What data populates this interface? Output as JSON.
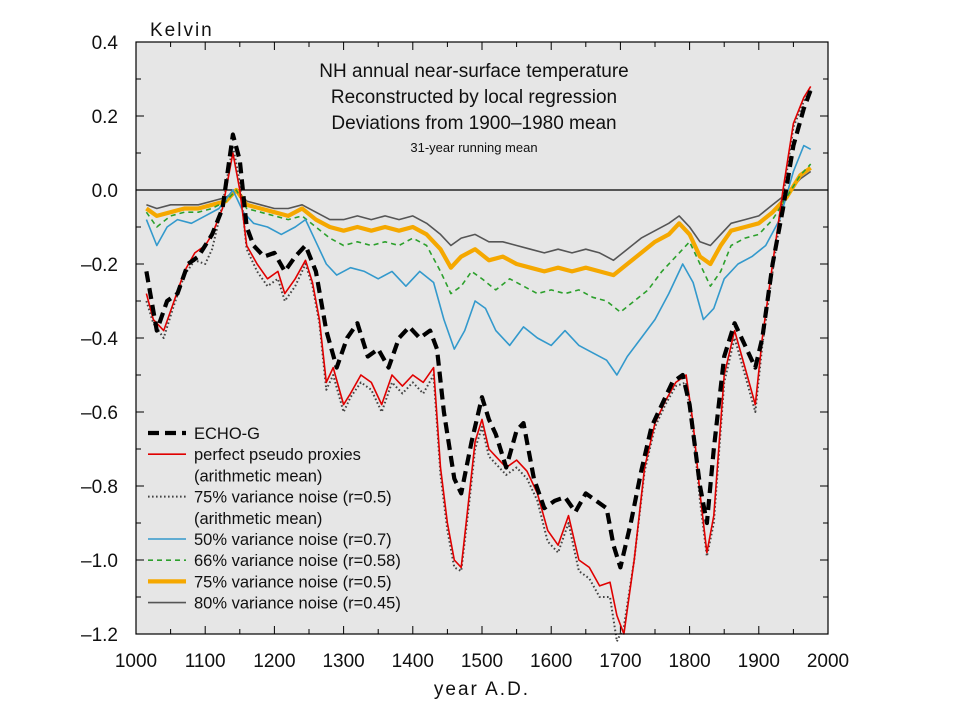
{
  "chart_data": {
    "type": "line",
    "title_lines": [
      "NH annual near-surface temperature",
      "Reconstructed by local regression",
      "Deviations from 1900–1980 mean"
    ],
    "subtitle": "31-year running mean",
    "xlabel": "year A.D.",
    "ylabel": "Kelvin",
    "xlim": [
      1000,
      2000
    ],
    "ylim": [
      -1.2,
      0.4
    ],
    "xticks": [
      "1000",
      "1100",
      "1200",
      "1300",
      "1400",
      "1500",
      "1600",
      "1700",
      "1800",
      "1900",
      "2000"
    ],
    "yticks": [
      "0.4",
      "0.2",
      "0.0",
      "–0.2",
      "–0.4",
      "–0.6",
      "–0.8",
      "–1.0",
      "–1.2"
    ],
    "ytick_values": [
      0.4,
      0.2,
      0.0,
      -0.2,
      -0.4,
      -0.6,
      -0.8,
      -1.0,
      -1.2
    ],
    "zero_line": true,
    "background": "#e6e6e6",
    "legend_position": "lower-left",
    "legend": [
      {
        "text": "ECHO-G",
        "series": 0
      },
      {
        "text": "perfect pseudo proxies",
        "series": 1
      },
      {
        "text": "(arithmetic mean)",
        "series": null
      },
      {
        "text": "75% variance noise (r=0.5)",
        "series": 2
      },
      {
        "text": "(arithmetic mean)",
        "series": null
      },
      {
        "text": "50% variance noise (r=0.7)",
        "series": 3
      },
      {
        "text": "66% variance noise (r=0.58)",
        "series": 4
      },
      {
        "text": "75% variance noise (r=0.5)",
        "series": 5
      },
      {
        "text": "80% variance noise (r=0.45)",
        "series": 6
      }
    ],
    "series": [
      {
        "name": "ECHO-G",
        "color": "#000000",
        "style": "dashed-thick",
        "x": [
          1015,
          1030,
          1045,
          1060,
          1075,
          1090,
          1100,
          1110,
          1125,
          1140,
          1150,
          1160,
          1170,
          1185,
          1200,
          1215,
          1230,
          1245,
          1260,
          1275,
          1290,
          1305,
          1320,
          1335,
          1350,
          1365,
          1380,
          1395,
          1410,
          1425,
          1435,
          1445,
          1460,
          1470,
          1485,
          1500,
          1510,
          1520,
          1535,
          1550,
          1560,
          1575,
          1590,
          1605,
          1620,
          1635,
          1650,
          1665,
          1680,
          1690,
          1700,
          1715,
          1730,
          1745,
          1760,
          1775,
          1790,
          1800,
          1815,
          1825,
          1835,
          1850,
          1865,
          1880,
          1895,
          1905,
          1920,
          1935,
          1950,
          1965,
          1975
        ],
        "y": [
          -0.22,
          -0.38,
          -0.3,
          -0.28,
          -0.2,
          -0.18,
          -0.15,
          -0.12,
          -0.05,
          0.15,
          0.08,
          -0.1,
          -0.15,
          -0.18,
          -0.17,
          -0.22,
          -0.18,
          -0.15,
          -0.22,
          -0.38,
          -0.48,
          -0.4,
          -0.36,
          -0.45,
          -0.43,
          -0.48,
          -0.4,
          -0.37,
          -0.4,
          -0.38,
          -0.43,
          -0.6,
          -0.78,
          -0.82,
          -0.68,
          -0.56,
          -0.62,
          -0.66,
          -0.75,
          -0.65,
          -0.63,
          -0.78,
          -0.86,
          -0.84,
          -0.83,
          -0.87,
          -0.82,
          -0.84,
          -0.86,
          -0.96,
          -1.02,
          -0.9,
          -0.76,
          -0.64,
          -0.58,
          -0.52,
          -0.5,
          -0.58,
          -0.8,
          -0.9,
          -0.7,
          -0.45,
          -0.36,
          -0.42,
          -0.48,
          -0.4,
          -0.2,
          -0.05,
          0.12,
          0.22,
          0.27
        ]
      },
      {
        "name": "perfect pseudo proxies (arithmetic mean)",
        "color": "#e00000",
        "style": "solid",
        "x": [
          1015,
          1025,
          1040,
          1055,
          1070,
          1085,
          1100,
          1110,
          1125,
          1140,
          1150,
          1160,
          1175,
          1190,
          1205,
          1215,
          1230,
          1245,
          1255,
          1265,
          1275,
          1285,
          1300,
          1310,
          1325,
          1340,
          1355,
          1370,
          1385,
          1400,
          1415,
          1430,
          1440,
          1450,
          1460,
          1470,
          1480,
          1490,
          1500,
          1510,
          1520,
          1535,
          1550,
          1565,
          1580,
          1595,
          1610,
          1625,
          1640,
          1655,
          1670,
          1685,
          1695,
          1705,
          1720,
          1735,
          1750,
          1765,
          1780,
          1795,
          1805,
          1815,
          1825,
          1835,
          1850,
          1865,
          1880,
          1895,
          1905,
          1920,
          1935,
          1950,
          1965,
          1975
        ],
        "y": [
          -0.28,
          -0.35,
          -0.38,
          -0.3,
          -0.22,
          -0.17,
          -0.15,
          -0.12,
          -0.05,
          0.1,
          0.0,
          -0.15,
          -0.2,
          -0.24,
          -0.22,
          -0.28,
          -0.24,
          -0.19,
          -0.25,
          -0.35,
          -0.52,
          -0.48,
          -0.58,
          -0.55,
          -0.5,
          -0.52,
          -0.58,
          -0.5,
          -0.53,
          -0.5,
          -0.52,
          -0.48,
          -0.75,
          -0.9,
          -1.0,
          -1.02,
          -0.85,
          -0.68,
          -0.62,
          -0.7,
          -0.72,
          -0.75,
          -0.73,
          -0.76,
          -0.82,
          -0.92,
          -0.96,
          -0.88,
          -1.0,
          -1.02,
          -1.07,
          -1.06,
          -1.15,
          -1.2,
          -1.0,
          -0.75,
          -0.63,
          -0.57,
          -0.52,
          -0.5,
          -0.63,
          -0.82,
          -0.98,
          -0.88,
          -0.5,
          -0.38,
          -0.48,
          -0.58,
          -0.4,
          -0.2,
          0.0,
          0.18,
          0.25,
          0.28
        ]
      },
      {
        "name": "75% variance noise (r=0.5) (arithmetic mean)",
        "color": "#444444",
        "style": "dotted",
        "x": [
          1015,
          1025,
          1040,
          1055,
          1070,
          1085,
          1100,
          1110,
          1125,
          1140,
          1150,
          1160,
          1175,
          1190,
          1205,
          1215,
          1230,
          1245,
          1255,
          1265,
          1275,
          1285,
          1300,
          1310,
          1325,
          1340,
          1355,
          1370,
          1385,
          1400,
          1415,
          1430,
          1440,
          1450,
          1460,
          1470,
          1480,
          1490,
          1500,
          1510,
          1520,
          1535,
          1550,
          1565,
          1580,
          1595,
          1610,
          1625,
          1640,
          1655,
          1670,
          1685,
          1695,
          1705,
          1720,
          1735,
          1750,
          1765,
          1780,
          1795,
          1805,
          1815,
          1825,
          1835,
          1850,
          1865,
          1880,
          1895,
          1905,
          1920,
          1935,
          1950,
          1965,
          1975
        ],
        "y": [
          -0.3,
          -0.36,
          -0.4,
          -0.31,
          -0.23,
          -0.19,
          -0.2,
          -0.16,
          -0.04,
          0.12,
          0.02,
          -0.16,
          -0.22,
          -0.26,
          -0.24,
          -0.3,
          -0.26,
          -0.2,
          -0.26,
          -0.36,
          -0.54,
          -0.5,
          -0.6,
          -0.56,
          -0.52,
          -0.54,
          -0.6,
          -0.52,
          -0.55,
          -0.52,
          -0.55,
          -0.5,
          -0.77,
          -0.92,
          -1.02,
          -1.03,
          -0.87,
          -0.7,
          -0.64,
          -0.72,
          -0.74,
          -0.77,
          -0.75,
          -0.78,
          -0.84,
          -0.95,
          -0.98,
          -0.9,
          -1.03,
          -1.05,
          -1.1,
          -1.1,
          -1.22,
          -1.18,
          -1.0,
          -0.76,
          -0.64,
          -0.58,
          -0.53,
          -0.52,
          -0.65,
          -0.84,
          -0.99,
          -0.9,
          -0.52,
          -0.4,
          -0.5,
          -0.6,
          -0.42,
          -0.22,
          -0.02,
          0.17,
          0.24,
          0.27
        ]
      },
      {
        "name": "50% variance noise (r=0.7)",
        "color": "#3399cc",
        "style": "solid",
        "x": [
          1015,
          1030,
          1045,
          1060,
          1080,
          1100,
          1120,
          1140,
          1155,
          1170,
          1190,
          1210,
          1230,
          1245,
          1260,
          1275,
          1290,
          1310,
          1330,
          1350,
          1370,
          1390,
          1410,
          1430,
          1445,
          1460,
          1475,
          1490,
          1505,
          1520,
          1540,
          1560,
          1580,
          1600,
          1620,
          1640,
          1660,
          1680,
          1695,
          1710,
          1730,
          1750,
          1770,
          1790,
          1805,
          1820,
          1835,
          1850,
          1870,
          1890,
          1910,
          1930,
          1950,
          1965,
          1975
        ],
        "y": [
          -0.08,
          -0.15,
          -0.1,
          -0.08,
          -0.09,
          -0.07,
          -0.05,
          0.0,
          -0.06,
          -0.09,
          -0.1,
          -0.12,
          -0.1,
          -0.08,
          -0.14,
          -0.2,
          -0.23,
          -0.21,
          -0.22,
          -0.24,
          -0.22,
          -0.26,
          -0.22,
          -0.25,
          -0.35,
          -0.43,
          -0.38,
          -0.3,
          -0.32,
          -0.38,
          -0.42,
          -0.37,
          -0.4,
          -0.42,
          -0.38,
          -0.42,
          -0.44,
          -0.46,
          -0.5,
          -0.45,
          -0.4,
          -0.35,
          -0.28,
          -0.2,
          -0.25,
          -0.35,
          -0.32,
          -0.24,
          -0.2,
          -0.18,
          -0.15,
          -0.08,
          0.05,
          0.12,
          0.11
        ]
      },
      {
        "name": "66% variance noise (r=0.58)",
        "color": "#2ca02c",
        "style": "dashed",
        "x": [
          1015,
          1030,
          1050,
          1070,
          1090,
          1110,
          1130,
          1145,
          1160,
          1180,
          1200,
          1220,
          1240,
          1260,
          1280,
          1300,
          1320,
          1340,
          1360,
          1380,
          1400,
          1420,
          1440,
          1455,
          1470,
          1485,
          1500,
          1520,
          1540,
          1560,
          1580,
          1600,
          1620,
          1640,
          1660,
          1680,
          1700,
          1720,
          1740,
          1760,
          1780,
          1800,
          1815,
          1830,
          1845,
          1860,
          1880,
          1900,
          1920,
          1940,
          1960,
          1975
        ],
        "y": [
          -0.06,
          -0.1,
          -0.07,
          -0.06,
          -0.06,
          -0.05,
          -0.03,
          0.0,
          -0.05,
          -0.06,
          -0.07,
          -0.08,
          -0.07,
          -0.1,
          -0.13,
          -0.15,
          -0.14,
          -0.15,
          -0.14,
          -0.15,
          -0.13,
          -0.15,
          -0.22,
          -0.28,
          -0.26,
          -0.22,
          -0.24,
          -0.27,
          -0.24,
          -0.26,
          -0.28,
          -0.27,
          -0.28,
          -0.27,
          -0.29,
          -0.3,
          -0.33,
          -0.3,
          -0.27,
          -0.22,
          -0.18,
          -0.14,
          -0.2,
          -0.26,
          -0.22,
          -0.15,
          -0.13,
          -0.12,
          -0.08,
          -0.02,
          0.04,
          0.07
        ]
      },
      {
        "name": "75% variance noise (r=0.5)",
        "color": "#f5a800",
        "style": "solid-thick",
        "x": [
          1015,
          1030,
          1050,
          1070,
          1090,
          1110,
          1130,
          1145,
          1160,
          1180,
          1200,
          1220,
          1240,
          1260,
          1280,
          1300,
          1320,
          1340,
          1360,
          1380,
          1400,
          1420,
          1440,
          1455,
          1470,
          1490,
          1510,
          1530,
          1550,
          1570,
          1590,
          1610,
          1630,
          1650,
          1670,
          1690,
          1710,
          1730,
          1750,
          1770,
          1785,
          1800,
          1815,
          1830,
          1845,
          1860,
          1880,
          1900,
          1920,
          1940,
          1960,
          1975
        ],
        "y": [
          -0.05,
          -0.07,
          -0.06,
          -0.05,
          -0.05,
          -0.04,
          -0.03,
          0.0,
          -0.04,
          -0.05,
          -0.06,
          -0.07,
          -0.05,
          -0.08,
          -0.1,
          -0.11,
          -0.1,
          -0.11,
          -0.1,
          -0.11,
          -0.1,
          -0.12,
          -0.16,
          -0.21,
          -0.18,
          -0.16,
          -0.19,
          -0.18,
          -0.2,
          -0.21,
          -0.22,
          -0.21,
          -0.22,
          -0.21,
          -0.22,
          -0.23,
          -0.2,
          -0.17,
          -0.14,
          -0.12,
          -0.09,
          -0.12,
          -0.18,
          -0.2,
          -0.15,
          -0.11,
          -0.1,
          -0.09,
          -0.06,
          -0.02,
          0.04,
          0.06
        ]
      },
      {
        "name": "80% variance noise (r=0.45)",
        "color": "#555555",
        "style": "solid",
        "x": [
          1015,
          1030,
          1050,
          1070,
          1090,
          1110,
          1130,
          1145,
          1160,
          1180,
          1200,
          1220,
          1240,
          1260,
          1280,
          1300,
          1320,
          1340,
          1360,
          1380,
          1400,
          1420,
          1440,
          1455,
          1470,
          1490,
          1510,
          1530,
          1550,
          1570,
          1590,
          1610,
          1630,
          1650,
          1670,
          1690,
          1710,
          1730,
          1750,
          1770,
          1785,
          1800,
          1815,
          1830,
          1845,
          1860,
          1880,
          1900,
          1920,
          1940,
          1960,
          1975
        ],
        "y": [
          -0.04,
          -0.05,
          -0.04,
          -0.04,
          -0.04,
          -0.03,
          -0.02,
          0.0,
          -0.03,
          -0.04,
          -0.05,
          -0.05,
          -0.04,
          -0.06,
          -0.08,
          -0.08,
          -0.07,
          -0.08,
          -0.07,
          -0.08,
          -0.07,
          -0.09,
          -0.12,
          -0.15,
          -0.13,
          -0.12,
          -0.14,
          -0.14,
          -0.15,
          -0.16,
          -0.17,
          -0.16,
          -0.17,
          -0.16,
          -0.17,
          -0.19,
          -0.16,
          -0.13,
          -0.11,
          -0.09,
          -0.07,
          -0.1,
          -0.14,
          -0.15,
          -0.12,
          -0.09,
          -0.08,
          -0.07,
          -0.04,
          -0.01,
          0.03,
          0.05
        ]
      }
    ]
  }
}
